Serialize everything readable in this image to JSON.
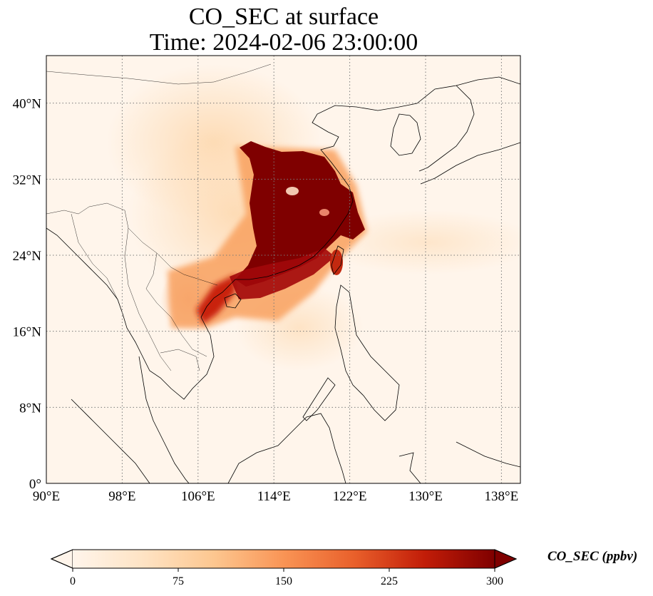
{
  "title": {
    "line1": "CO_SEC at surface",
    "line2": "Time: 2024-02-06 23:00:00"
  },
  "map": {
    "variable": "CO_SEC",
    "level": "surface",
    "extent": {
      "lon_min": 90,
      "lon_max": 140,
      "lat_min": 0,
      "lat_max": 45
    },
    "lon_ticks": [
      {
        "value": 90,
        "label": "90°E"
      },
      {
        "value": 98,
        "label": "98°E"
      },
      {
        "value": 106,
        "label": "106°E"
      },
      {
        "value": 114,
        "label": "114°E"
      },
      {
        "value": 122,
        "label": "122°E"
      },
      {
        "value": 130,
        "label": "130°E"
      },
      {
        "value": 138,
        "label": "138°E"
      }
    ],
    "lat_ticks": [
      {
        "value": 0,
        "label": "0°"
      },
      {
        "value": 8,
        "label": "8°N"
      },
      {
        "value": 16,
        "label": "16°N"
      },
      {
        "value": 24,
        "label": "24°N"
      },
      {
        "value": 32,
        "label": "32°N"
      },
      {
        "value": 40,
        "label": "40°N"
      }
    ],
    "gridlines": true,
    "colormap": "OrRd",
    "colors": {
      "background": "#fff5eb",
      "coastline": "#000000",
      "gridline": "#7a7a7a"
    }
  },
  "colorbar": {
    "label": "CO_SEC (ppbv)",
    "min": 0,
    "max": 300,
    "extend": "both",
    "ticks": [
      {
        "value": 0,
        "label": "0"
      },
      {
        "value": 75,
        "label": "75"
      },
      {
        "value": 150,
        "label": "150"
      },
      {
        "value": 225,
        "label": "225"
      },
      {
        "value": 300,
        "label": "300"
      }
    ],
    "stops": [
      "#fff5eb",
      "#fee3c4",
      "#fdc790",
      "#f99455",
      "#e9602b",
      "#c21d08",
      "#7f0000"
    ]
  }
}
